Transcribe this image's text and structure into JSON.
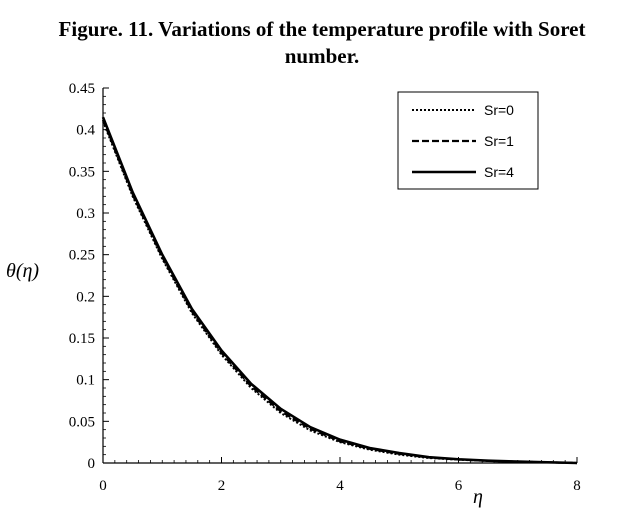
{
  "figure": {
    "title_line1": "Figure. 11. Variations of the temperature profile with Soret",
    "title_line2": "number."
  },
  "chart_data": {
    "type": "line",
    "title": "Figure. 11. Variations of the temperature profile with Soret number.",
    "xlabel": "η",
    "ylabel": "θ(η)",
    "xlim": [
      0,
      8
    ],
    "ylim": [
      0,
      0.45
    ],
    "xticks": [
      "0",
      "2",
      "4",
      "6",
      "8"
    ],
    "yticks": [
      "0",
      "0.05",
      "0.1",
      "0.15",
      "0.2",
      "0.25",
      "0.3",
      "0.35",
      "0.4",
      "0.45"
    ],
    "grid": false,
    "legend": "top-right",
    "series": [
      {
        "name": "Sr=0",
        "style": "dotted",
        "x": [
          0,
          0.5,
          1,
          1.5,
          2,
          2.5,
          3,
          3.5,
          4,
          4.5,
          5,
          5.5,
          6,
          6.5,
          7,
          7.5,
          8
        ],
        "y": [
          0.41,
          0.32,
          0.245,
          0.18,
          0.13,
          0.09,
          0.06,
          0.039,
          0.025,
          0.016,
          0.01,
          0.006,
          0.004,
          0.0025,
          0.0015,
          0.0008,
          0
        ]
      },
      {
        "name": "Sr=1",
        "style": "dashed",
        "x": [
          0,
          0.5,
          1,
          1.5,
          2,
          2.5,
          3,
          3.5,
          4,
          4.5,
          5,
          5.5,
          6,
          6.5,
          7,
          7.5,
          8
        ],
        "y": [
          0.412,
          0.322,
          0.247,
          0.182,
          0.132,
          0.092,
          0.062,
          0.041,
          0.026,
          0.017,
          0.011,
          0.0065,
          0.0042,
          0.0026,
          0.0016,
          0.0008,
          0
        ]
      },
      {
        "name": "Sr=4",
        "style": "solid",
        "x": [
          0,
          0.5,
          1,
          1.5,
          2,
          2.5,
          3,
          3.5,
          4,
          4.5,
          5,
          5.5,
          6,
          6.5,
          7,
          7.5,
          8
        ],
        "y": [
          0.415,
          0.325,
          0.25,
          0.185,
          0.135,
          0.095,
          0.065,
          0.043,
          0.028,
          0.018,
          0.012,
          0.007,
          0.0045,
          0.0028,
          0.0017,
          0.0009,
          0
        ]
      }
    ]
  }
}
